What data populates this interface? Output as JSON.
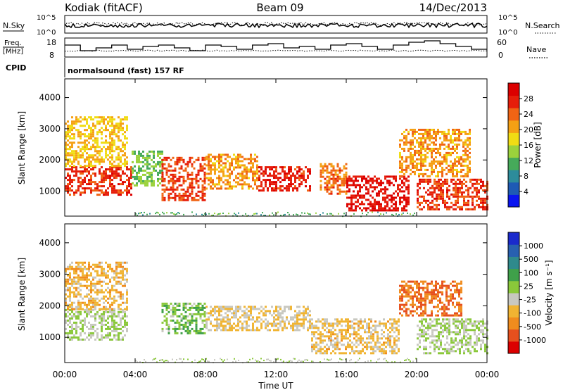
{
  "header": {
    "station": "Kodiak (fitACF)",
    "beam": "Beam 09",
    "date": "14/Dec/2013"
  },
  "top_panels": {
    "nsky_label": "N.Sky",
    "nsky_ticks": [
      "10^5",
      "10^0"
    ],
    "nsearch_label": "N.Search",
    "nsearch_ticks": [
      "10^5",
      "10^0"
    ],
    "freq_label": "Freq.",
    "freq_unit": "[MHz]",
    "freq_ticks": [
      "18",
      "8"
    ],
    "nave_label": "Nave",
    "nave_ticks": [
      "60",
      "0"
    ],
    "cpid_label": "CPID",
    "cpid_value": "normalsound (fast) 157 RF"
  },
  "colors": {
    "power_scale": [
      "#0a14f0",
      "#1e5ab4",
      "#2d8c9b",
      "#46aa5a",
      "#9bd23c",
      "#f0dc14",
      "#f5a014",
      "#f06414",
      "#e61e0a",
      "#dc0000"
    ],
    "velocity_scale": [
      "#1a2acc",
      "#2860b0",
      "#2f8a8c",
      "#3fa04a",
      "#8ac83a",
      "#c8c8c0",
      "#f0b432",
      "#f08c1e",
      "#e6501e",
      "#dc0000"
    ]
  },
  "chart_data": [
    {
      "type": "heatmap",
      "name": "power",
      "ylabel": "Slant Range [km]",
      "yticks": [
        "1000",
        "2000",
        "3000",
        "4000"
      ],
      "ylim": [
        200,
        4600
      ],
      "xlim": [
        0,
        24
      ],
      "colorbar": {
        "label": "Power [dB]",
        "ticks": [
          "4",
          "8",
          "12",
          "16",
          "20",
          "24",
          "28"
        ],
        "range": [
          0,
          30
        ]
      },
      "echo_regions": [
        {
          "t0": 0.0,
          "t1": 3.8,
          "r0": 900,
          "r1": 1800,
          "value": 25
        },
        {
          "t0": 0.0,
          "t1": 3.5,
          "r0": 1800,
          "r1": 3400,
          "value": 18
        },
        {
          "t0": 3.8,
          "t1": 5.5,
          "r0": 1200,
          "r1": 2300,
          "value": 12
        },
        {
          "t0": 5.5,
          "t1": 8.0,
          "r0": 700,
          "r1": 2100,
          "value": 24
        },
        {
          "t0": 8.0,
          "t1": 11.0,
          "r0": 1100,
          "r1": 2200,
          "value": 20
        },
        {
          "t0": 11.0,
          "t1": 14.0,
          "r0": 1000,
          "r1": 1800,
          "value": 26
        },
        {
          "t0": 14.5,
          "t1": 16.0,
          "r0": 900,
          "r1": 1900,
          "value": 22
        },
        {
          "t0": 16.0,
          "t1": 19.5,
          "r0": 400,
          "r1": 1500,
          "value": 27
        },
        {
          "t0": 19.0,
          "t1": 23.0,
          "r0": 1500,
          "r1": 3000,
          "value": 20
        },
        {
          "t0": 20.0,
          "t1": 24.0,
          "r0": 400,
          "r1": 1400,
          "value": 25
        }
      ]
    },
    {
      "type": "heatmap",
      "name": "velocity",
      "ylabel": "Slant Range [km]",
      "yticks": [
        "1000",
        "2000",
        "3000",
        "4000"
      ],
      "ylim": [
        200,
        4600
      ],
      "xlim": [
        0,
        24
      ],
      "colorbar": {
        "label": "Velocity [m s⁻¹]",
        "ticks": [
          "1000",
          "500",
          "100",
          "25",
          "-25",
          "-100",
          "-500",
          "-1000"
        ],
        "range": [
          -1000,
          1000
        ]
      },
      "echo_regions": [
        {
          "t0": 0.0,
          "t1": 3.5,
          "r0": 900,
          "r1": 1900,
          "value": 0
        },
        {
          "t0": 0.0,
          "t1": 3.5,
          "r0": 1900,
          "r1": 3400,
          "value": -300
        },
        {
          "t0": 5.5,
          "t1": 8.0,
          "r0": 1100,
          "r1": 2100,
          "value": 150
        },
        {
          "t0": 8.0,
          "t1": 14.0,
          "r0": 1200,
          "r1": 2000,
          "value": -200
        },
        {
          "t0": 14.0,
          "t1": 19.0,
          "r0": 500,
          "r1": 1600,
          "value": -250
        },
        {
          "t0": 19.0,
          "t1": 22.5,
          "r0": 1700,
          "r1": 2800,
          "value": -600
        },
        {
          "t0": 20.0,
          "t1": 24.0,
          "r0": 500,
          "r1": 1600,
          "value": 0
        }
      ]
    }
  ],
  "xaxis": {
    "ticks": [
      "00:00",
      "04:00",
      "08:00",
      "12:00",
      "16:00",
      "20:00",
      "00:00"
    ],
    "label": "Time UT"
  }
}
